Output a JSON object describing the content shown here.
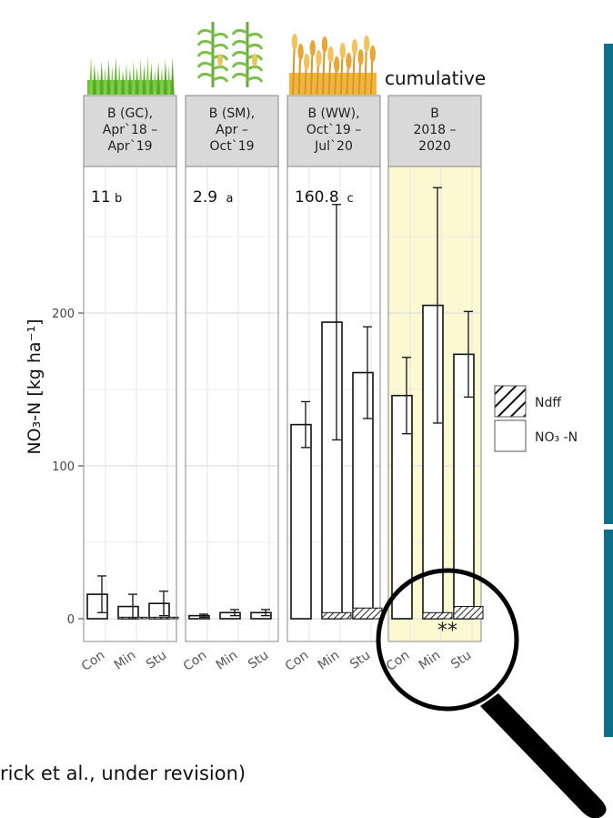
{
  "header_note": "cumulative",
  "citation": "rick et al., under revision)",
  "significance_mark": "**",
  "colors": {
    "strip_bg": "#d9d9d9",
    "highlight_bg": "#fbf8d2",
    "accent_bar": "#0e6f8a",
    "bar_stroke": "#111111",
    "bar_fill": "#ffffff"
  },
  "chart_data": {
    "type": "bar",
    "ylabel": "NO₃-N [kg ha⁻¹]",
    "ylim": [
      -12,
      290
    ],
    "yticks": [
      0,
      100,
      200
    ],
    "grid": true,
    "legend_position": "right",
    "legend": [
      {
        "name": "Ndff",
        "pattern": "hatched"
      },
      {
        "name": "NO₃ -N",
        "pattern": "empty"
      }
    ],
    "categories": [
      "Con",
      "Min",
      "Stu"
    ],
    "panels": [
      {
        "strip": [
          "B (GC),",
          "Apr`18 –",
          "Apr`19"
        ],
        "icon": "grass-icon",
        "total_label": "11",
        "letter": "b",
        "highlighted": false,
        "no3n": [
          16,
          8,
          10
        ],
        "no3n_err": [
          12,
          8,
          8
        ],
        "ndff": [
          0,
          1,
          1
        ],
        "ndff_err": [
          0,
          0,
          0
        ]
      },
      {
        "strip": [
          "B (SM),",
          "Apr –",
          "Oct`19"
        ],
        "icon": "corn-icon",
        "total_label": "2.9",
        "letter": "a",
        "highlighted": false,
        "no3n": [
          2,
          4,
          4
        ],
        "no3n_err": [
          1,
          2,
          2
        ],
        "ndff": [
          0,
          0,
          0
        ],
        "ndff_err": [
          0,
          0,
          0
        ]
      },
      {
        "strip": [
          "B (WW),",
          "Oct`19 –",
          "Jul`20"
        ],
        "icon": "wheat-icon",
        "total_label": "160.8",
        "letter": "c",
        "highlighted": false,
        "no3n": [
          127,
          194,
          161
        ],
        "no3n_err": [
          15,
          77,
          30
        ],
        "ndff": [
          0,
          4,
          7
        ],
        "ndff_err": [
          0,
          1,
          1
        ]
      },
      {
        "strip": [
          "B",
          "2018 –",
          "2020"
        ],
        "icon": "",
        "total_label": "",
        "letter": "",
        "highlighted": true,
        "no3n": [
          146,
          205,
          173
        ],
        "no3n_err": [
          25,
          77,
          28
        ],
        "ndff": [
          0,
          4,
          8
        ],
        "ndff_err": [
          0,
          1,
          1
        ]
      }
    ]
  }
}
